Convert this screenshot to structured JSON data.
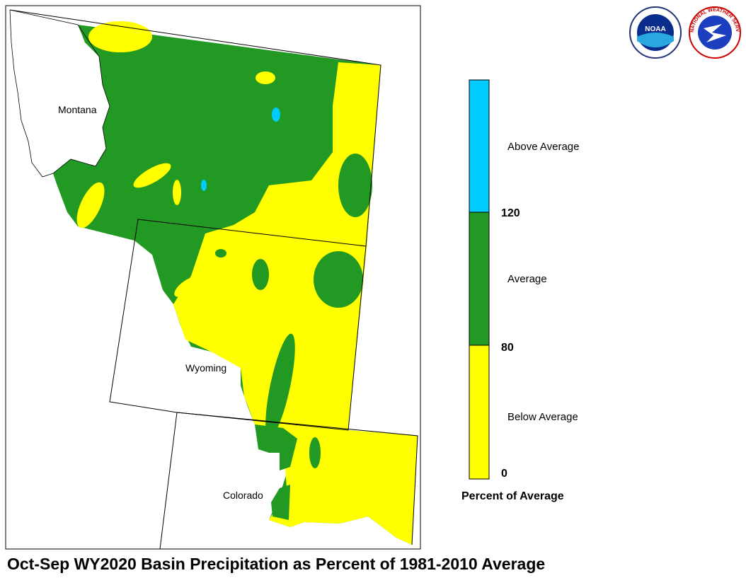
{
  "map": {
    "title": "Oct-Sep WY2020 Basin Precipitation as Percent of 1981-2010 Average",
    "states": [
      "Montana",
      "Wyoming",
      "Colorado"
    ]
  },
  "legend": {
    "title": "Percent of Average",
    "classes": [
      "Above Average",
      "Average",
      "Below Average"
    ],
    "ticks": [
      120,
      80,
      0
    ]
  },
  "logos": {
    "noaa": "NOAA",
    "nws": "NATIONAL WEATHER SERVICE"
  }
}
